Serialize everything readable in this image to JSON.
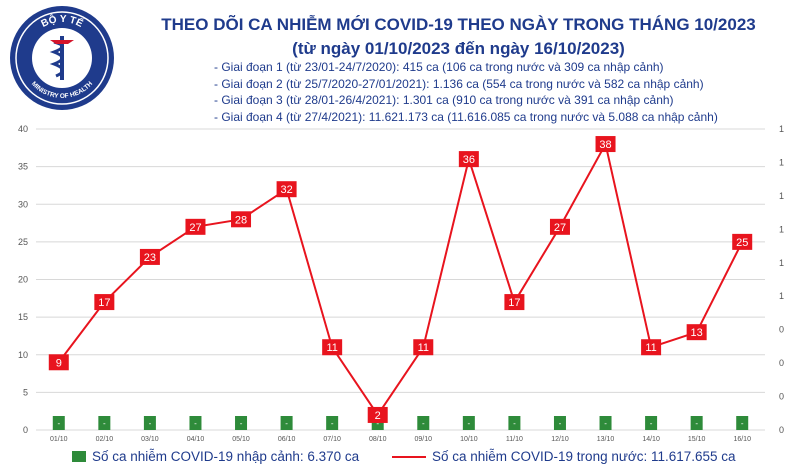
{
  "header": {
    "logo_text_top": "BỘ Y TẾ",
    "logo_text_bottom": "MINISTRY OF HEALTH",
    "title_line1": "THEO DÕI CA NHIỄM MỚI COVID-19 THEO NGÀY TRONG THÁNG 10/2023",
    "title_line2": "(từ ngày 01/10/2023 đến ngày 16/10/2023)"
  },
  "notes": [
    "- Giai đoạn 1 (từ 23/01-24/7/2020): 415 ca (106 ca trong nước và 309 ca nhập cảnh)",
    "- Giai đoạn 2 (từ 25/7/2020-27/01/2021): 1.136 ca (554 ca trong nước và 582 ca nhập cảnh)",
    "- Giai đoạn 3 (từ 28/01-26/4/2021): 1.301 ca (910 ca trong nước và 391 ca nhập cảnh)",
    "- Giai đoạn 4 (từ 27/4/2021): 11.621.173 ca (11.616.085 ca trong nước và 5.088 ca nhập cảnh)"
  ],
  "chart_data": {
    "type": "bar+line",
    "categories": [
      "01/10",
      "02/10",
      "03/10",
      "04/10",
      "05/10",
      "06/10",
      "07/10",
      "08/10",
      "09/10",
      "10/10",
      "11/10",
      "12/10",
      "13/10",
      "14/10",
      "15/10",
      "16/10"
    ],
    "series": [
      {
        "name": "Số ca nhiễm COVID-19 nhập cảnh: 6.370 ca",
        "type": "bar",
        "color": "#2e8b3a",
        "values": [
          0,
          0,
          0,
          0,
          0,
          0,
          0,
          0,
          0,
          0,
          0,
          0,
          0,
          0,
          0,
          0
        ],
        "labels": [
          "-",
          "-",
          "-",
          "-",
          "-",
          "-",
          "-",
          "-",
          "-",
          "-",
          "-",
          "-",
          "-",
          "-",
          "-",
          "-"
        ]
      },
      {
        "name": "Số ca nhiễm COVID-19 trong nước: 11.617.655 ca",
        "type": "line",
        "color": "#e8141e",
        "values": [
          9,
          17,
          23,
          27,
          28,
          32,
          11,
          2,
          11,
          36,
          17,
          27,
          38,
          11,
          13,
          25
        ]
      }
    ],
    "y_left": {
      "min": 0,
      "max": 40,
      "ticks": [
        "0",
        "5",
        "10",
        "15",
        "20",
        "25",
        "30",
        "35",
        "40"
      ]
    },
    "y_right": {
      "ticks": [
        "0",
        "0",
        "0",
        "0",
        "1",
        "1",
        "1",
        "1",
        "1",
        "1"
      ]
    },
    "grid": true
  }
}
